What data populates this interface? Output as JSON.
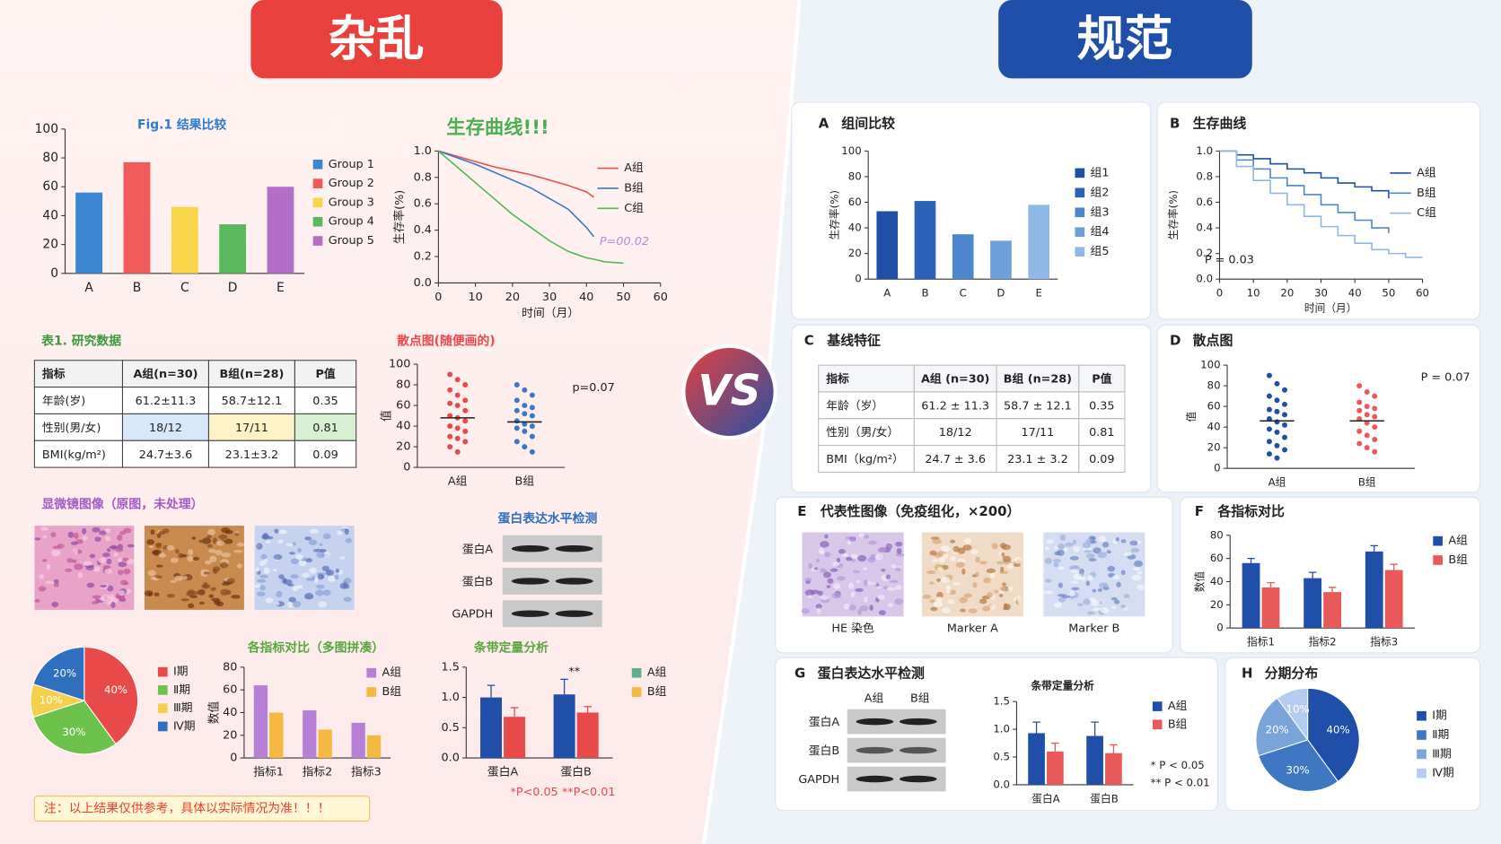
{
  "left_title": "杂乱",
  "right_title": "规范",
  "vs": "VS",
  "note": "注：以上结果仅供参考，具体以实际情况为准！！！",
  "tables": [
    {
      "title": "表1. 研究数据",
      "headers": [
        "指标",
        "A组(n=30)",
        "B组(n=28)",
        "P值"
      ],
      "rows": [
        [
          "年龄(岁)",
          "61.2±11.3",
          "58.7±12.1",
          "0.35"
        ],
        [
          "性别(男/女)",
          "18/12",
          "17/11",
          "0.81"
        ],
        [
          "BMI(kg/m²)",
          "24.7±3.6",
          "23.1±3.2",
          "0.09"
        ]
      ]
    },
    {
      "panel": "C",
      "title": "基线特征",
      "headers": [
        "指标",
        "A组 (n=30)",
        "B组 (n=28)",
        "P值"
      ],
      "rows": [
        [
          "年龄（岁）",
          "61.2 ± 11.3",
          "58.7 ± 12.1",
          "0.35"
        ],
        [
          "性别（男/女）",
          "18/12",
          "17/11",
          "0.81"
        ],
        [
          "BMI（kg/m²）",
          "24.7 ± 3.6",
          "23.1 ± 3.2",
          "0.09"
        ]
      ]
    }
  ],
  "image_panels": [
    {
      "title": "显微镜图像（原图，未处理）"
    },
    {
      "panel": "E",
      "title": "代表性图像（免疫组化，×200）",
      "captions": [
        "HE 染色",
        "Marker A",
        "Marker B"
      ]
    }
  ],
  "blots": [
    {
      "title": "蛋白表达水平检测",
      "rows": [
        "蛋白A",
        "蛋白B",
        "GAPDH"
      ]
    },
    {
      "panel": "G",
      "title": "蛋白表达水平检测",
      "lanes": [
        "A组",
        "B组"
      ],
      "rows": [
        "蛋白A",
        "蛋白B",
        "GAPDH"
      ]
    }
  ],
  "chart_data": [
    {
      "type": "bar",
      "title": "Fig.1 结果比较",
      "title_color": "#2e7bd0",
      "categories": [
        "A",
        "B",
        "C",
        "D",
        "E"
      ],
      "values": [
        56,
        77,
        46,
        34,
        60
      ],
      "colors": [
        "#3a87d0",
        "#f05a5a",
        "#f9d54a",
        "#5cb85c",
        "#b46ec8"
      ],
      "legend": [
        "Group 1",
        "Group 2",
        "Group 3",
        "Group 4",
        "Group 5"
      ],
      "ylim": [
        0,
        100
      ],
      "yticks": [
        0,
        20,
        40,
        60,
        80,
        100
      ]
    },
    {
      "type": "line",
      "title": "生存曲线!!!",
      "title_color": "#4caf50",
      "x": [
        0,
        5,
        10,
        15,
        20,
        25,
        30,
        35,
        40,
        42,
        45,
        50
      ],
      "series": [
        {
          "name": "A组",
          "color": "#e8504a",
          "values": [
            1,
            0.96,
            0.92,
            0.88,
            0.85,
            0.82,
            0.78,
            0.74,
            0.69,
            0.65,
            null,
            null
          ]
        },
        {
          "name": "B组",
          "color": "#3a78c8",
          "values": [
            1,
            0.95,
            0.9,
            0.84,
            0.78,
            0.72,
            0.64,
            0.56,
            0.42,
            0.35,
            null,
            null
          ]
        },
        {
          "name": "C组",
          "color": "#4cbb4c",
          "values": [
            1,
            0.88,
            0.76,
            0.64,
            0.52,
            0.42,
            0.32,
            0.24,
            0.19,
            0.18,
            0.16,
            0.15
          ]
        }
      ],
      "xlim": [
        0,
        60
      ],
      "xticks": [
        0,
        10,
        20,
        30,
        40,
        50,
        60
      ],
      "ylim": [
        0,
        1
      ],
      "yticks": [
        {
          "value": 0,
          "label": "0.0"
        },
        0.2,
        0.4,
        0.6,
        0.8,
        {
          "value": 1,
          "label": "1.0"
        }
      ],
      "ylabel": "生存率(%)",
      "xlabel": "时间（月）",
      "annotation": "P=00.02"
    },
    {
      "type": "strip",
      "title": "散点图(随便画的)",
      "title_color": "#e84a4a",
      "categories": [
        "A组",
        "B组"
      ],
      "groups": [
        {
          "color": "#e84a4a",
          "values": [
            90,
            85,
            80,
            75,
            70,
            65,
            62,
            60,
            55,
            50,
            48,
            45,
            40,
            38,
            35,
            30,
            28,
            25,
            20,
            15
          ],
          "mean": 48
        },
        {
          "color": "#3a78c8",
          "values": [
            80,
            75,
            70,
            65,
            60,
            58,
            55,
            52,
            50,
            45,
            42,
            40,
            38,
            35,
            30,
            25,
            20,
            15
          ],
          "mean": 44
        }
      ],
      "ylim": [
        0,
        100
      ],
      "yticks": [
        0,
        20,
        40,
        60,
        80,
        100
      ],
      "ylabel": "值",
      "annotation": "p=0.07"
    },
    {
      "type": "pie",
      "categories": [
        "Ⅰ期",
        "Ⅱ期",
        "Ⅲ期",
        "Ⅳ期"
      ],
      "values": [
        40,
        30,
        10,
        20
      ],
      "value_labels": [
        "40%",
        "30%",
        "10%",
        "20%"
      ],
      "colors": [
        "#e84a4a",
        "#6cc24a",
        "#f6d04d",
        "#2f6fc0"
      ]
    },
    {
      "type": "grouped-bar",
      "title": "各指标对比（多图拼凑）",
      "title_color": "#5aa83c",
      "categories": [
        "指标1",
        "指标2",
        "指标3"
      ],
      "series": [
        {
          "name": "A组",
          "color": "#b77fd6",
          "values": [
            64,
            42,
            31
          ]
        },
        {
          "name": "B组",
          "color": "#f5b942",
          "values": [
            40,
            25,
            20
          ]
        }
      ],
      "ylim": [
        0,
        80
      ],
      "yticks": [
        0,
        20,
        40,
        60,
        80
      ],
      "ylabel": "数值"
    },
    {
      "type": "grouped-bar",
      "title": "条带定量分析",
      "title_color": "#5aa83c",
      "categories": [
        "蛋白A",
        "蛋白B"
      ],
      "series": [
        {
          "name": "A组",
          "color": "#1f4fa8",
          "legend_color": "#5fb08a",
          "values": [
            1,
            1.05
          ],
          "errors": [
            0.2,
            0.25
          ]
        },
        {
          "name": "B组",
          "color": "#e84a4a",
          "legend_color": "#f5b942",
          "values": [
            0.68,
            0.75
          ],
          "errors": [
            0.15,
            0.1
          ]
        }
      ],
      "ylim": [
        0,
        1.5
      ],
      "yticks": [
        {
          "value": 0,
          "label": "0.0"
        },
        0.5,
        {
          "value": 1,
          "label": "1.0"
        },
        1.5
      ],
      "annotation": "**",
      "footnote": "*P<0.05 **P<0.01"
    },
    {
      "type": "bar",
      "panel": "A",
      "title": "组间比较",
      "categories": [
        "A",
        "B",
        "C",
        "D",
        "E"
      ],
      "values": [
        53,
        61,
        35,
        30,
        58
      ],
      "colors": [
        "#1f4fa8",
        "#2b62b8",
        "#4d86cc",
        "#6d9fd8",
        "#8fb8e6"
      ],
      "legend": [
        "组1",
        "组2",
        "组3",
        "组4",
        "组5"
      ],
      "ylim": [
        0,
        100
      ],
      "yticks": [
        0,
        20,
        40,
        60,
        80,
        100
      ],
      "ylabel": "生存率(%)"
    },
    {
      "type": "line",
      "panel": "B",
      "title": "生存曲线",
      "step": true,
      "x": [
        0,
        5,
        10,
        15,
        20,
        25,
        30,
        35,
        40,
        45,
        50,
        55,
        60
      ],
      "series": [
        {
          "name": "A组",
          "color": "#1f4fa8",
          "values": [
            1,
            0.97,
            0.94,
            0.9,
            0.86,
            0.83,
            0.79,
            0.75,
            0.72,
            0.69,
            0.63,
            null,
            null
          ]
        },
        {
          "name": "B组",
          "color": "#4d86cc",
          "values": [
            1,
            0.93,
            0.86,
            0.79,
            0.73,
            0.66,
            0.58,
            0.52,
            0.46,
            0.4,
            0.36,
            null,
            null
          ]
        },
        {
          "name": "C组",
          "color": "#8fb8e6",
          "values": [
            1,
            0.88,
            0.77,
            0.67,
            0.58,
            0.49,
            0.41,
            0.34,
            0.28,
            0.23,
            0.2,
            0.17,
            0.17
          ]
        }
      ],
      "xlim": [
        0,
        60
      ],
      "xticks": [
        0,
        10,
        20,
        30,
        40,
        50,
        60
      ],
      "ylim": [
        0,
        1
      ],
      "yticks": [
        {
          "value": 0,
          "label": "0.0"
        },
        0.2,
        0.4,
        0.6,
        0.8,
        {
          "value": 1,
          "label": "1.0"
        }
      ],
      "ylabel": "生存率(%)",
      "xlabel": "时间（月）",
      "annotation": "P = 0.03"
    },
    {
      "type": "strip",
      "panel": "D",
      "title": "散点图",
      "categories": [
        "A组",
        "B组"
      ],
      "groups": [
        {
          "color": "#1f4fa8",
          "values": [
            90,
            82,
            76,
            70,
            66,
            62,
            57,
            55,
            52,
            48,
            45,
            42,
            38,
            35,
            30,
            26,
            22,
            18,
            14,
            10
          ],
          "mean": 46
        },
        {
          "color": "#e85a5a",
          "values": [
            80,
            74,
            70,
            64,
            60,
            58,
            56,
            52,
            50,
            48,
            44,
            40,
            36,
            32,
            28,
            24,
            20,
            16
          ],
          "mean": 46
        }
      ],
      "ylim": [
        0,
        100
      ],
      "yticks": [
        0,
        20,
        40,
        60,
        80,
        100
      ],
      "ylabel": "值",
      "annotation": "P = 0.07"
    },
    {
      "type": "grouped-bar",
      "panel": "F",
      "title": "各指标对比",
      "categories": [
        "指标1",
        "指标2",
        "指标3"
      ],
      "series": [
        {
          "name": "A组",
          "color": "#1f4fa8",
          "values": [
            56,
            43,
            66
          ],
          "errors": [
            4,
            5,
            5
          ]
        },
        {
          "name": "B组",
          "color": "#e85a5a",
          "values": [
            35,
            31,
            50
          ],
          "errors": [
            4,
            4,
            5
          ]
        }
      ],
      "ylim": [
        0,
        80
      ],
      "yticks": [
        0,
        20,
        40,
        60,
        80
      ],
      "ylabel": "数值"
    },
    {
      "type": "grouped-bar",
      "title": "条带定量分析",
      "categories": [
        "蛋白A",
        "蛋白B"
      ],
      "series": [
        {
          "name": "A组",
          "color": "#1f4fa8",
          "values": [
            0.93,
            0.88
          ],
          "errors": [
            0.2,
            0.25
          ]
        },
        {
          "name": "B组",
          "color": "#e85a5a",
          "values": [
            0.6,
            0.57
          ],
          "errors": [
            0.15,
            0.15
          ]
        }
      ],
      "ylim": [
        0,
        1.5
      ],
      "yticks": [
        {
          "value": 0,
          "label": "0.0"
        },
        0.5,
        {
          "value": 1,
          "label": "1.0"
        },
        1.5
      ],
      "footnotes": [
        "* P < 0.05",
        "** P < 0.01"
      ]
    },
    {
      "type": "pie",
      "panel": "H",
      "title": "分期分布",
      "categories": [
        "Ⅰ期",
        "Ⅱ期",
        "Ⅲ期",
        "Ⅳ期"
      ],
      "values": [
        40,
        30,
        20,
        10
      ],
      "value_labels": [
        "40%",
        "30%",
        "20%",
        "10%"
      ],
      "colors": [
        "#1f4fa8",
        "#3f77c2",
        "#7aa5da",
        "#b4cdee"
      ]
    }
  ]
}
